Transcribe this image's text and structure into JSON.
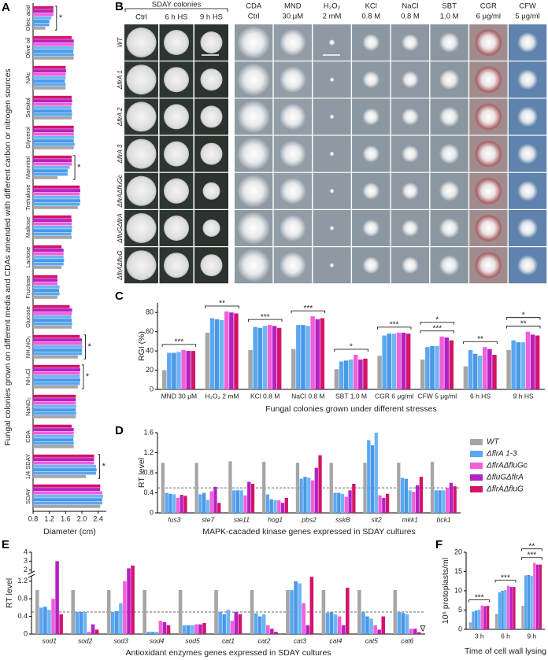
{
  "panel_b": {
    "panel": "B",
    "group_title": "SDAY colonies",
    "columns": [
      [
        "Ctrl"
      ],
      [
        "6 h HS"
      ],
      [
        "9 h HS"
      ],
      [
        "CDA",
        "Ctrl"
      ],
      [
        "MND",
        "30 μM"
      ],
      [
        "H₂O₂",
        "2 mM"
      ],
      [
        "KCl",
        "0.8 M"
      ],
      [
        "NaCl",
        "0.8 M"
      ],
      [
        "SBT",
        "1.0 M"
      ],
      [
        "CGR",
        "6 μg/ml"
      ],
      [
        "CFW",
        "5 μg/ml"
      ]
    ],
    "rows": [
      "WT",
      "ΔflrA 1",
      "ΔflrA 2",
      "ΔflrA 3",
      "ΔflrAΔfluGc",
      "ΔfluGΔflrA",
      "ΔflrAΔfluG"
    ]
  },
  "chart_data": [
    {
      "type": "hbar",
      "panel": "A",
      "ylabel": "Fungal colonies grown on different media and CDAs amended with different carbon or nitrogen sources",
      "xlabel": "Diameter (cm)",
      "categories": [
        "Oleic acid",
        "Olive oil",
        "NAc",
        "Sorbitol",
        "Glycerol",
        "Mannitol",
        "Trehalose",
        "Maltose",
        "Lactose",
        "Fructose",
        "Glucose",
        "NH₄NO₃",
        "NH₄Cl",
        "NaNO₂",
        "CDA",
        "1/4 SDAY",
        "SDAY"
      ],
      "series": [
        {
          "color": "#a6a6a6",
          "values": [
            1.1,
            1.8,
            1.6,
            1.75,
            1.8,
            1.4,
            1.9,
            1.75,
            1.5,
            1.4,
            1.75,
            1.9,
            1.9,
            1.85,
            1.8,
            2.1,
            2.45
          ]
        },
        {
          "color": "#5aa7f2",
          "values": [
            1.2,
            1.8,
            1.6,
            1.76,
            1.82,
            1.65,
            1.95,
            1.74,
            1.55,
            1.45,
            1.76,
            2.0,
            1.95,
            1.86,
            1.8,
            2.35,
            2.5
          ]
        },
        {
          "color": "#4a98e6",
          "values": [
            1.2,
            1.79,
            1.58,
            1.75,
            1.8,
            1.65,
            1.96,
            1.75,
            1.56,
            1.44,
            1.75,
            2.0,
            1.96,
            1.85,
            1.79,
            2.36,
            2.5
          ]
        },
        {
          "color": "#6db5f5",
          "values": [
            1.25,
            1.8,
            1.6,
            1.74,
            1.81,
            1.7,
            1.95,
            1.76,
            1.55,
            1.45,
            1.74,
            2.01,
            1.95,
            1.86,
            1.8,
            2.35,
            2.52
          ]
        },
        {
          "color": "#f35fd8",
          "values": [
            1.3,
            1.8,
            1.6,
            1.75,
            1.8,
            1.75,
            1.95,
            1.75,
            1.55,
            1.4,
            1.75,
            2.0,
            1.95,
            1.85,
            1.8,
            2.3,
            2.5
          ]
        },
        {
          "color": "#b421c4",
          "values": [
            1.3,
            1.8,
            1.61,
            1.76,
            1.8,
            1.75,
            1.96,
            1.75,
            1.55,
            1.4,
            1.76,
            2.0,
            1.96,
            1.85,
            1.8,
            2.3,
            2.45
          ]
        },
        {
          "color": "#d4136b",
          "values": [
            1.3,
            1.75,
            1.6,
            1.75,
            1.8,
            1.75,
            1.95,
            1.74,
            1.5,
            1.4,
            1.7,
            1.95,
            1.95,
            1.85,
            1.75,
            2.3,
            2.45
          ]
        }
      ],
      "xlim": [
        0.8,
        2.6
      ],
      "xticks": [
        0.8,
        1.2,
        1.6,
        {
          "value": 2,
          "label": "2.0"
        },
        2.4
      ],
      "significance": [
        "*",
        null,
        null,
        null,
        null,
        "*",
        null,
        null,
        null,
        null,
        null,
        "*",
        "*",
        null,
        null,
        "*",
        null
      ]
    },
    {
      "type": "bar",
      "panel": "C",
      "ylabel": "RGI (%)",
      "xlabel": "Fungal colonies grown under different stresses",
      "categories": [
        "MND 30 μM",
        "H₂O₂ 2 mM",
        "KCl 0.8 M",
        "NaCl 0.8 M",
        "SBT 1.0 M",
        "CGR 6 μg/ml",
        "CFW 5 μg/ml",
        "6 h HS",
        "9 h HS"
      ],
      "series": [
        {
          "color": "#a6a6a6",
          "values": [
            20,
            59,
            41,
            42,
            21,
            35,
            31,
            24,
            41
          ]
        },
        {
          "color": "#5aa7f2",
          "values": [
            38,
            74,
            65,
            67,
            29,
            56,
            44,
            41,
            51
          ]
        },
        {
          "color": "#4a98e6",
          "values": [
            38,
            73,
            64,
            67,
            30,
            58,
            45,
            37,
            49
          ]
        },
        {
          "color": "#6db5f5",
          "values": [
            39,
            72,
            66,
            66,
            31,
            58,
            45,
            35,
            49
          ]
        },
        {
          "color": "#f35fd8",
          "values": [
            41,
            81,
            67,
            76,
            36,
            59,
            55,
            44,
            60
          ]
        },
        {
          "color": "#b421c4",
          "values": [
            40,
            80,
            66,
            73,
            31,
            59,
            54,
            42,
            57
          ]
        },
        {
          "color": "#d4136b",
          "values": [
            40,
            79,
            64,
            74,
            32,
            58,
            51,
            36,
            56
          ]
        }
      ],
      "ylim": [
        0,
        90
      ],
      "yticks": [
        0,
        20,
        40,
        60,
        80
      ],
      "significance": [
        [
          "***"
        ],
        [
          "**"
        ],
        [
          "***"
        ],
        [
          "***"
        ],
        [
          "*"
        ],
        [
          "***"
        ],
        [
          "***",
          "*"
        ],
        [
          "**"
        ],
        [
          "**",
          "*"
        ]
      ]
    },
    {
      "type": "bar",
      "panel": "D",
      "ylabel": "RT level",
      "xlabel": "MAPK-cacaded kinase genes  expressed in SDAY cultures",
      "categories": [
        "fus3",
        "ste7",
        "ste11",
        "hog1",
        "pbs2",
        "sskB",
        "slt2",
        "mkk1",
        "bck1"
      ],
      "italic_categories": true,
      "series": [
        {
          "color": "#a6a6a6",
          "values": [
            1.0,
            1.0,
            1.03,
            1.02,
            1.0,
            1.0,
            1.0,
            1.0,
            1.02
          ]
        },
        {
          "color": "#5aa7f2",
          "values": [
            0.4,
            0.37,
            0.45,
            0.37,
            0.68,
            0.4,
            1.45,
            0.7,
            0.45
          ]
        },
        {
          "color": "#4a98e6",
          "values": [
            0.38,
            0.4,
            0.45,
            0.27,
            0.72,
            0.4,
            1.35,
            0.68,
            0.45
          ]
        },
        {
          "color": "#6db5f5",
          "values": [
            0.37,
            0.26,
            0.45,
            0.25,
            0.7,
            0.38,
            1.6,
            0.45,
            0.45
          ]
        },
        {
          "color": "#f35fd8",
          "values": [
            0.3,
            0.43,
            0.35,
            0.25,
            0.65,
            0.32,
            0.35,
            0.42,
            0.5
          ]
        },
        {
          "color": "#b421c4",
          "values": [
            0.36,
            0.52,
            0.62,
            0.2,
            0.9,
            0.45,
            0.3,
            0.55,
            0.6
          ]
        },
        {
          "color": "#d4136b",
          "values": [
            0.34,
            0.2,
            0.58,
            0.3,
            1.15,
            0.58,
            0.38,
            0.72,
            0.53
          ]
        }
      ],
      "ylim": [
        0,
        1.6
      ],
      "yticks": [
        0,
        0.4,
        0.8,
        1.2,
        1.6
      ],
      "reference_line": 0.5,
      "legend_position": "right",
      "legend": [
        {
          "name": "WT",
          "color": "#a6a6a6"
        },
        {
          "name": "ΔflrA 1-3",
          "color": "#5aa7f2"
        },
        {
          "name": "ΔflrAΔfluGc",
          "color": "#f35fd8"
        },
        {
          "name": "ΔfluGΔflrA",
          "color": "#b421c4"
        },
        {
          "name": "ΔflrAΔfluG",
          "color": "#d4136b"
        }
      ]
    },
    {
      "type": "bar",
      "panel": "E",
      "ylabel": "RT level",
      "xlabel": "Antioxidant enzymes genes expressed in SDAY cultures",
      "categories": [
        "sod1",
        "sod2",
        "sod3",
        "sod4",
        "sod5",
        "cat1",
        "cat2",
        "cat3",
        "cat4",
        "cat5",
        "cat6"
      ],
      "italic_categories": true,
      "series": [
        {
          "color": "#a6a6a6",
          "values": [
            1.0,
            1.0,
            1.0,
            1.0,
            1.0,
            1.0,
            1.0,
            1.0,
            1.0,
            1.0,
            1.0
          ]
        },
        {
          "color": "#5aa7f2",
          "values": [
            0.6,
            0.5,
            0.5,
            0.05,
            0.2,
            0.5,
            0.47,
            1.0,
            0.48,
            0.5,
            0.5
          ]
        },
        {
          "color": "#4a98e6",
          "values": [
            0.62,
            0.5,
            0.52,
            0.05,
            0.2,
            0.45,
            0.4,
            1.2,
            0.5,
            0.4,
            0.48
          ]
        },
        {
          "color": "#6db5f5",
          "values": [
            0.55,
            0.5,
            0.7,
            0.05,
            0.2,
            0.55,
            0.45,
            1.15,
            0.45,
            0.35,
            0.45
          ]
        },
        {
          "color": "#f35fd8",
          "values": [
            0.8,
            0.05,
            1.2,
            0.3,
            0.22,
            0.3,
            0.2,
            0.7,
            0.4,
            0.2,
            0.12
          ]
        },
        {
          "color": "#b421c4",
          "values": [
            3.0,
            0.22,
            2.2,
            0.27,
            0.22,
            0.5,
            0.12,
            0.2,
            0.2,
            0.1,
            0.12
          ]
        },
        {
          "color": "#d4136b",
          "values": [
            0.45,
            0.1,
            2.5,
            0.2,
            0.25,
            0.45,
            0.05,
            1.3,
            1.05,
            0.4,
            0.04
          ]
        }
      ],
      "ylim": [
        0,
        4
      ],
      "axis_break": [
        1.3,
        1.8
      ],
      "yticks": [
        0,
        0.4,
        0.8,
        1.2,
        2,
        3,
        4
      ],
      "reference_line": 0.5,
      "annotation": "∇"
    },
    {
      "type": "bar",
      "panel": "F",
      "ylabel": "10⁶ protoplasts/ml",
      "xlabel": "Time of cell wall lysing",
      "categories": [
        "3 h",
        "6 h",
        "9 h"
      ],
      "series": [
        {
          "color": "#a6a6a6",
          "values": [
            1.8,
            4.0,
            6.1
          ]
        },
        {
          "color": "#5aa7f2",
          "values": [
            4.6,
            9.6,
            14.0
          ]
        },
        {
          "color": "#4a98e6",
          "values": [
            4.9,
            10.0,
            14.1
          ]
        },
        {
          "color": "#6db5f5",
          "values": [
            5.1,
            10.2,
            13.9
          ]
        },
        {
          "color": "#f35fd8",
          "values": [
            6.2,
            11.3,
            17.2
          ]
        },
        {
          "color": "#b421c4",
          "values": [
            6.0,
            11.0,
            16.8
          ]
        },
        {
          "color": "#d4136b",
          "values": [
            6.1,
            11.0,
            16.8
          ]
        }
      ],
      "ylim": [
        0,
        20
      ],
      "yticks": [
        0,
        5,
        10,
        15,
        20
      ],
      "significance": [
        [
          "***"
        ],
        [
          "***"
        ],
        [
          "***",
          "**"
        ]
      ]
    }
  ]
}
